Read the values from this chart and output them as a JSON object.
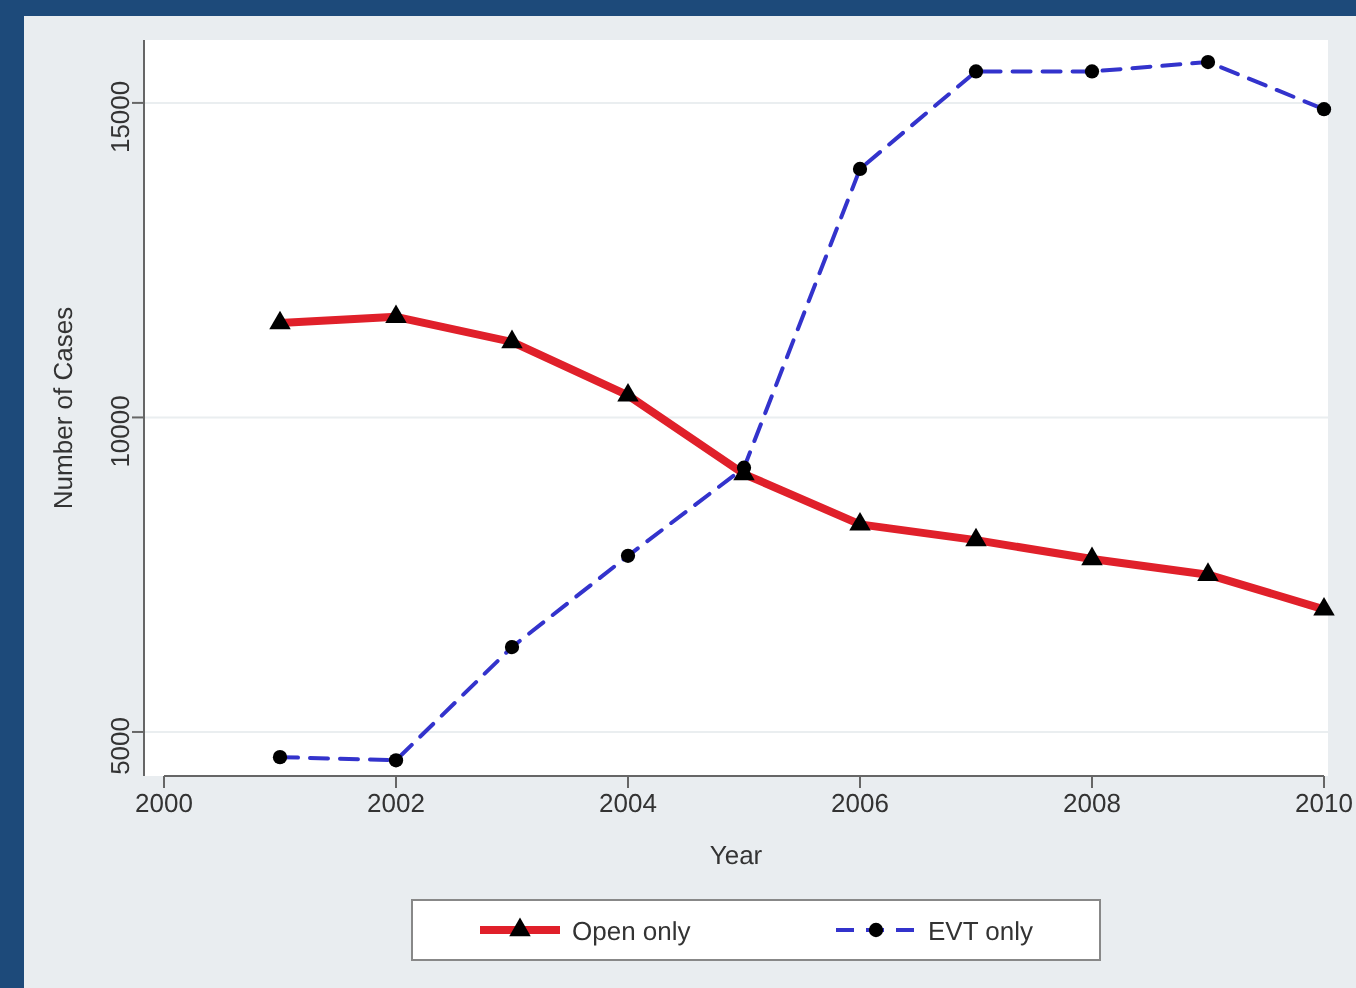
{
  "chart_data": {
    "type": "line",
    "xlabel": "Year",
    "ylabel": "Number of Cases",
    "x": [
      2001,
      2002,
      2003,
      2004,
      2005,
      2006,
      2007,
      2008,
      2009,
      2010
    ],
    "series": [
      {
        "name": "Open only",
        "color": "#e0202a",
        "marker": "triangle",
        "line_style": "solid",
        "values": [
          11500,
          11600,
          11200,
          10350,
          9100,
          8300,
          8050,
          7750,
          7500,
          6950
        ]
      },
      {
        "name": "EVT only",
        "color": "#3333cc",
        "marker": "circle",
        "line_style": "dashed",
        "values": [
          4600,
          4550,
          6350,
          7800,
          9200,
          13950,
          15500,
          15500,
          15650,
          14900
        ]
      }
    ],
    "xlim": [
      2000,
      2010
    ],
    "xticks": [
      2000,
      2002,
      2004,
      2006,
      2008,
      2010
    ],
    "ylim": [
      4300,
      16000
    ],
    "yticks": [
      5000,
      10000,
      15000
    ],
    "grid": "y",
    "legend": "bottom"
  }
}
